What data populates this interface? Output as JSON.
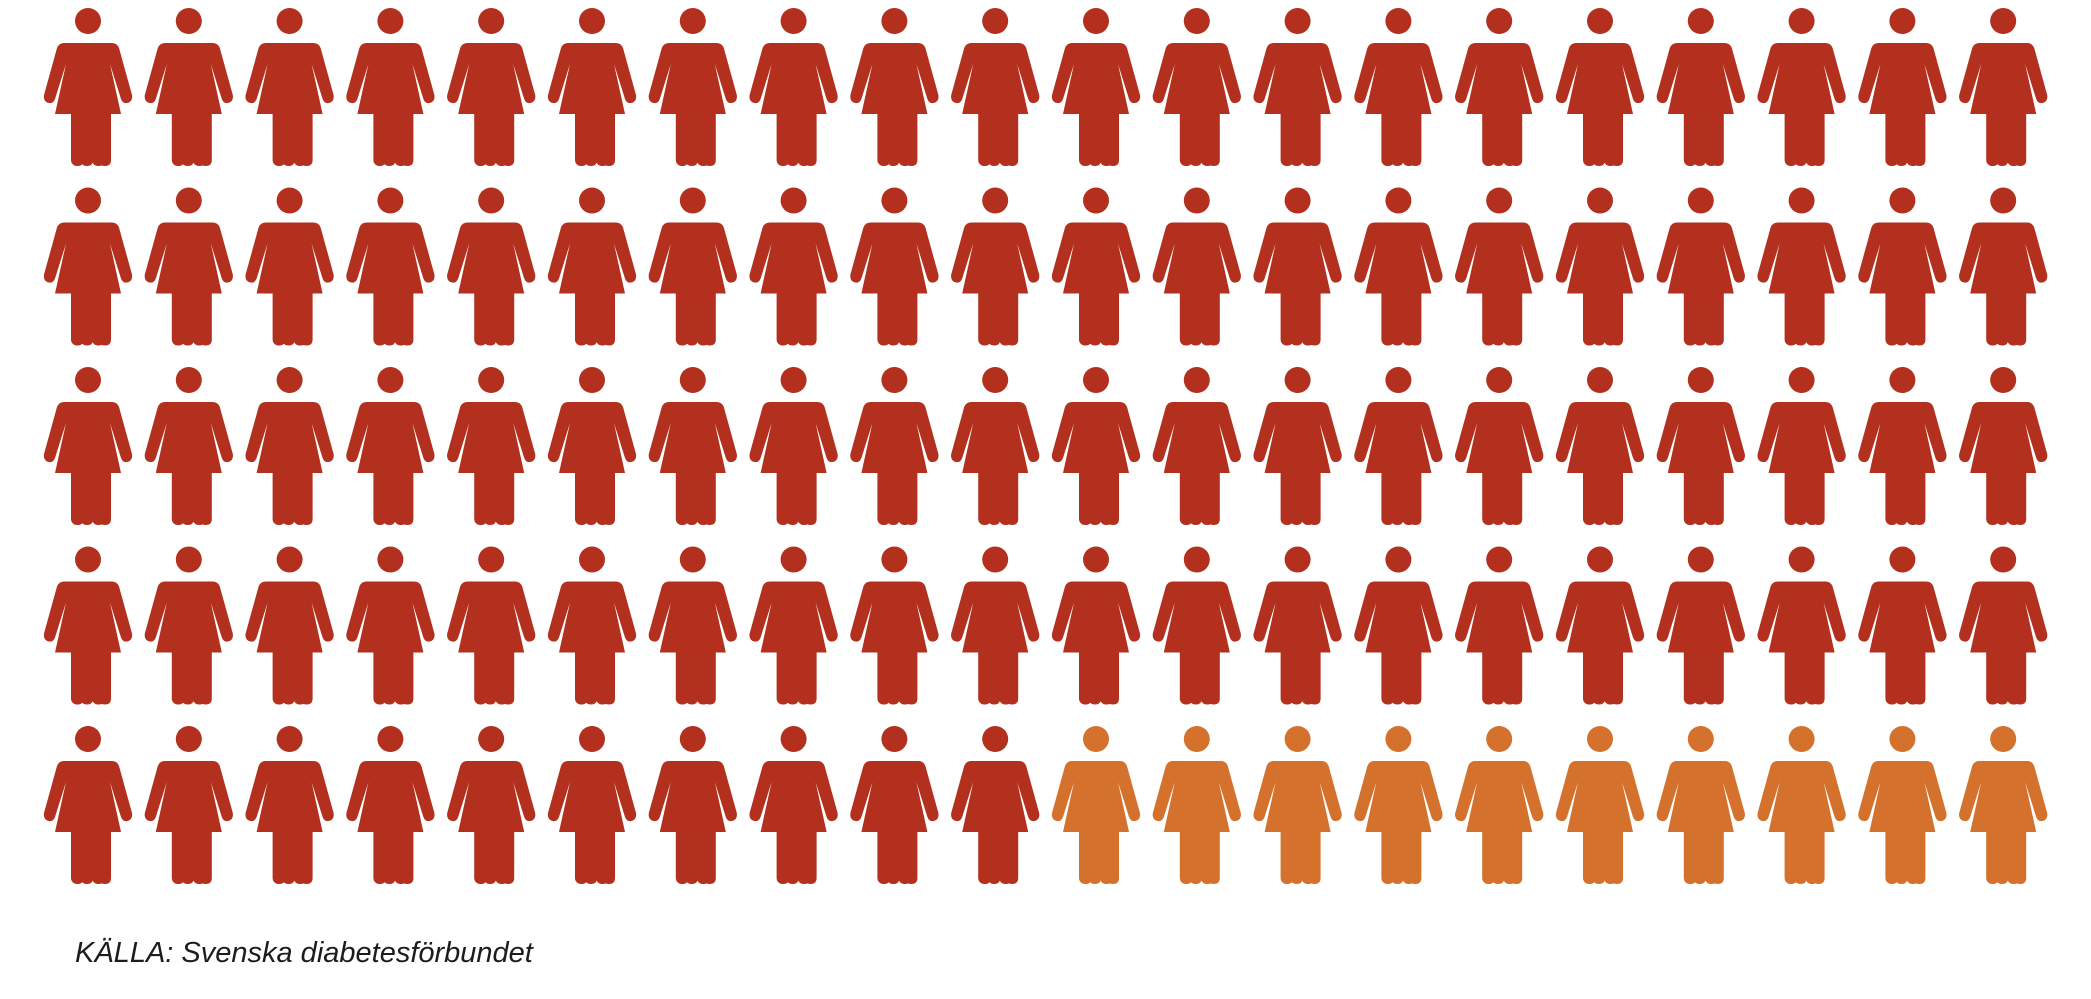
{
  "chart_data": {
    "type": "pictogram",
    "icon": "woman-figure-icon",
    "rows": 5,
    "columns": 20,
    "total_icons": 100,
    "series": [
      {
        "count": 90,
        "color": "#b3301e"
      },
      {
        "count": 10,
        "color": "#d4722d"
      }
    ],
    "title": "",
    "xlabel": "",
    "ylabel": ""
  },
  "source": "KÄLLA: Svenska diabetesförbundet"
}
